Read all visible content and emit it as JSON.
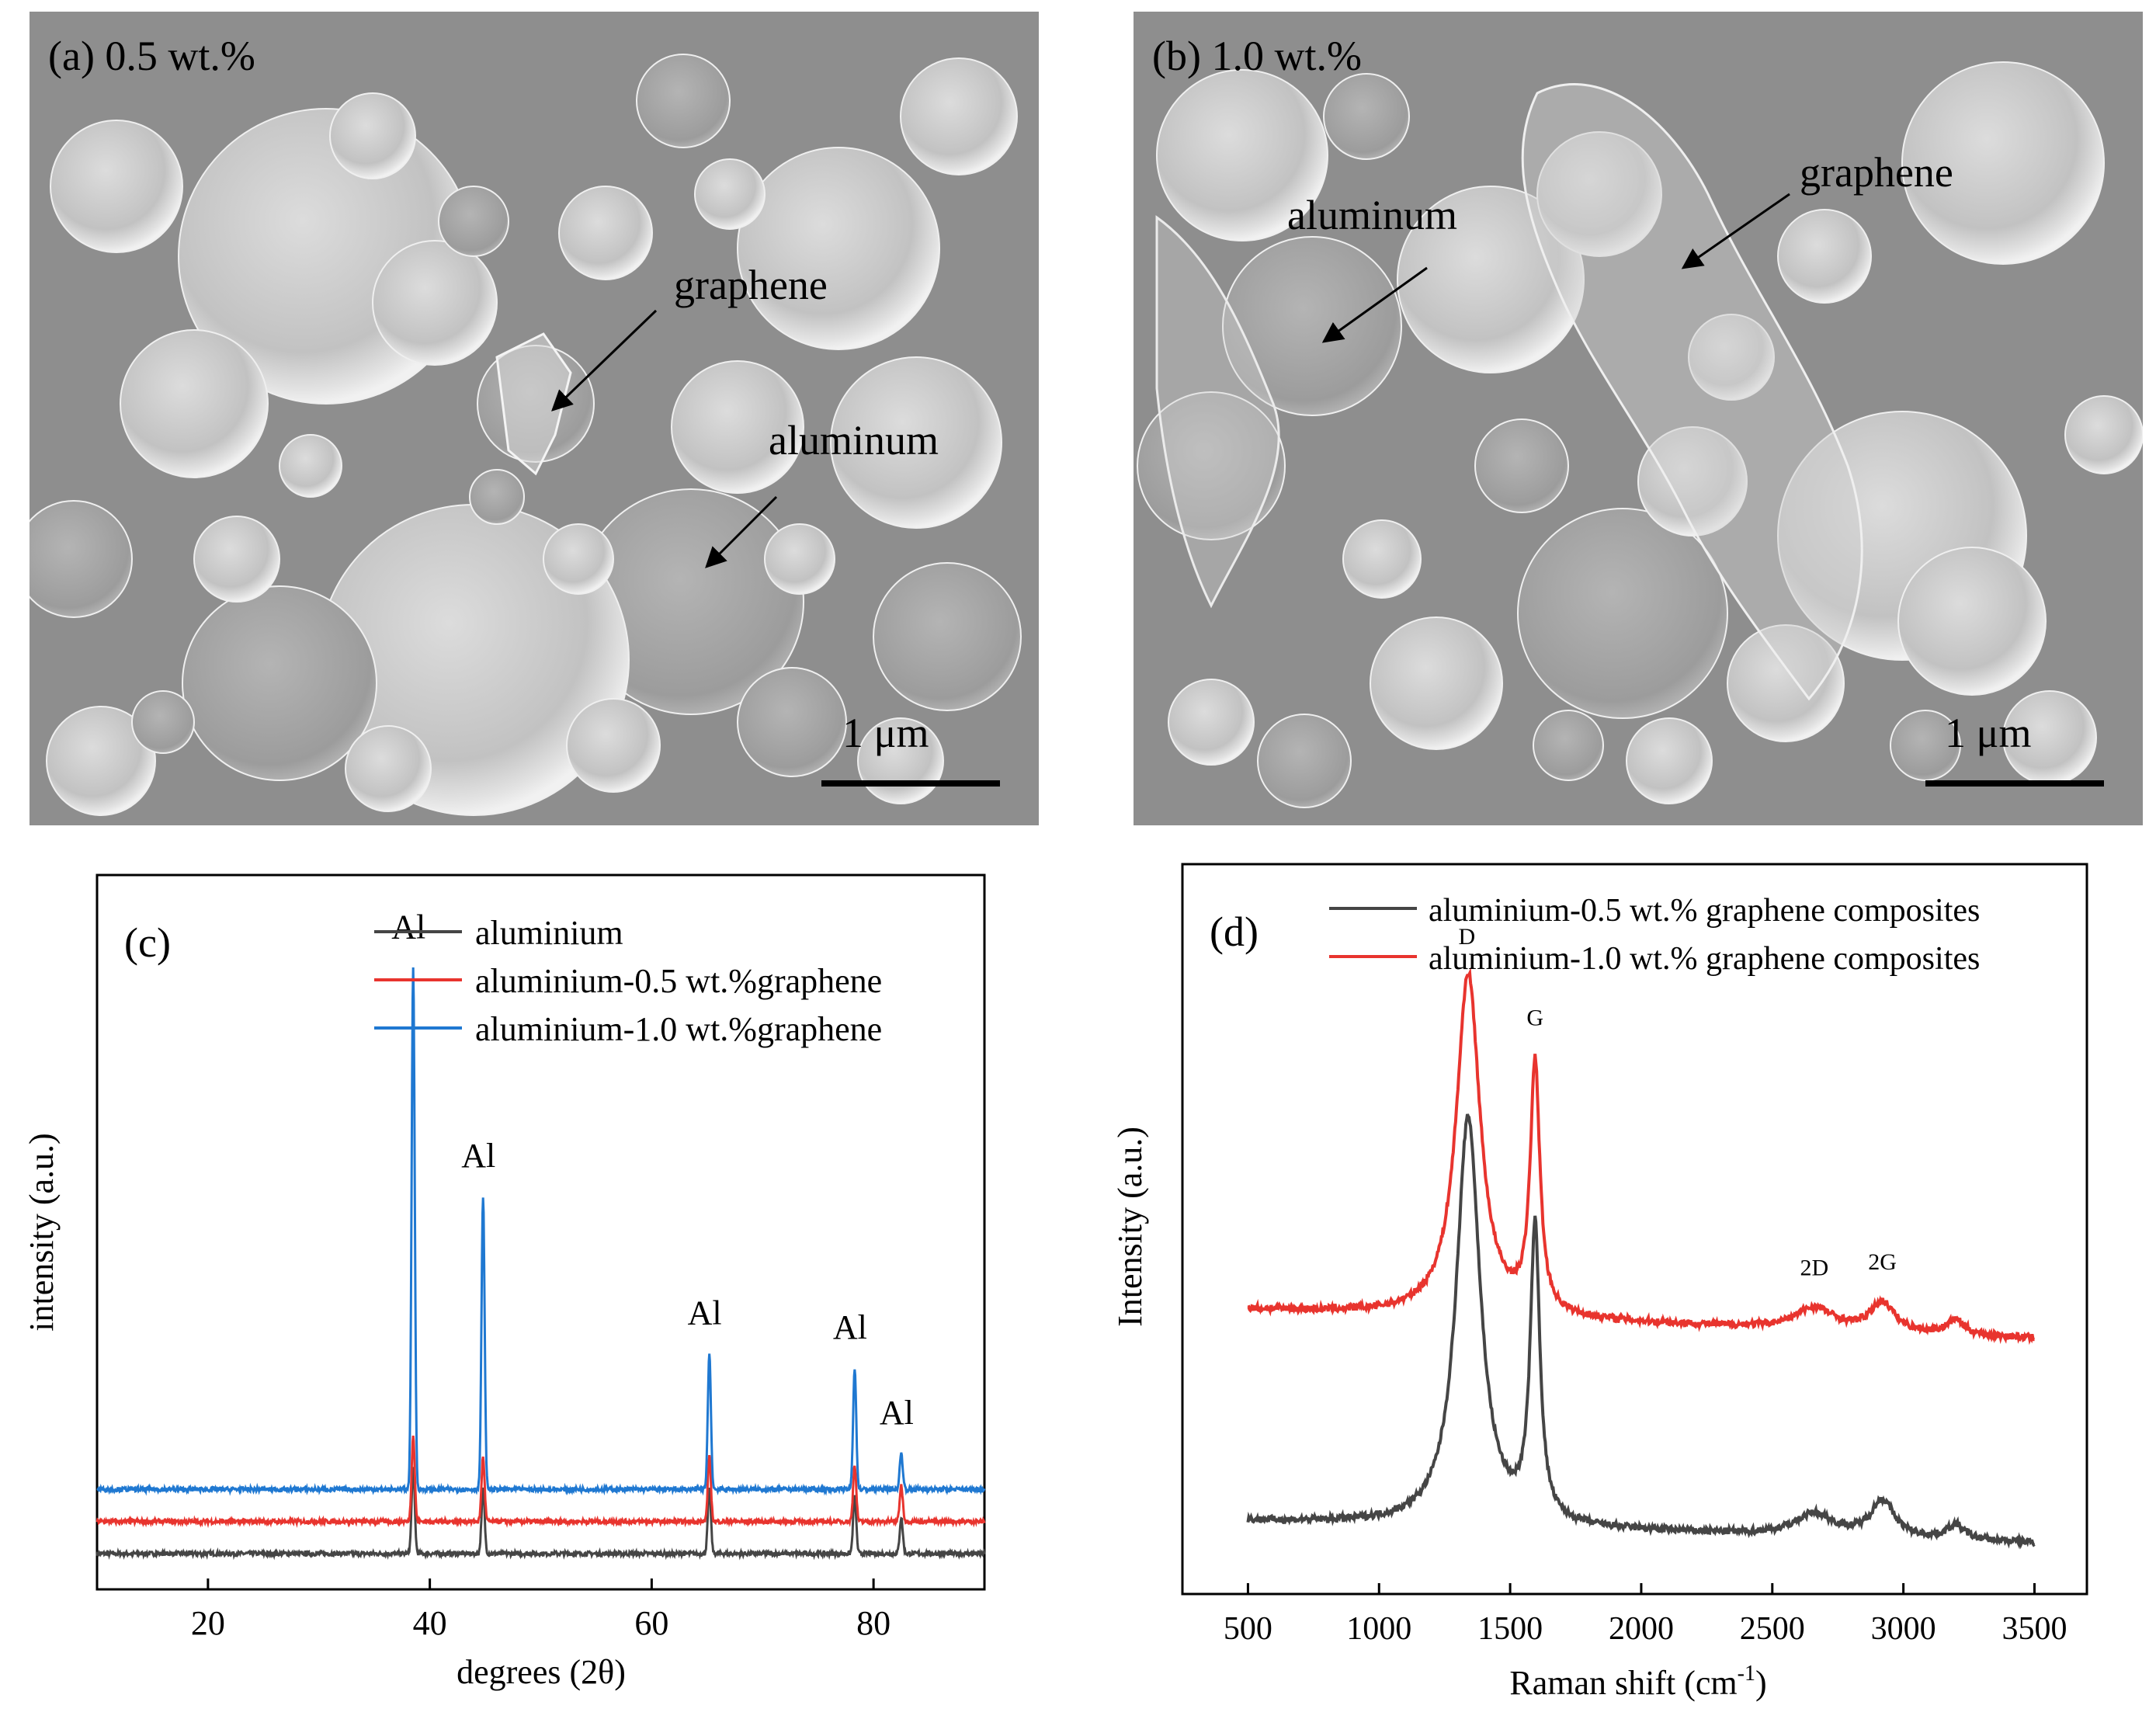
{
  "panel_a": {
    "label": "(a) 0.5 wt.%",
    "annotations": [
      "graphene",
      "aluminum"
    ],
    "scale_bar": "1 μm"
  },
  "panel_b": {
    "label": "(b) 1.0 wt.%",
    "annotations": [
      "graphene",
      "aluminum"
    ],
    "scale_bar": "1 μm"
  },
  "colors": {
    "black_series": "#454545",
    "red_series": "#e8342e",
    "blue_series": "#1f78d1",
    "sem_background": "#8f8f8f"
  },
  "chart_data": [
    {
      "id": "c",
      "type": "line",
      "panel_label": "(c)",
      "xlabel": "degrees (2θ)",
      "ylabel": "intensity (a.u.)",
      "xlim": [
        10,
        90
      ],
      "ylim": [
        0,
        100
      ],
      "x_ticks": [
        20,
        40,
        60,
        80
      ],
      "legend_position": "top-right",
      "series": [
        {
          "name": "aluminium",
          "color": "#454545",
          "baseline": 5,
          "peaks": [
            [
              38.5,
              12
            ],
            [
              44.8,
              9
            ],
            [
              65.2,
              9
            ],
            [
              78.3,
              8
            ],
            [
              82.5,
              5
            ]
          ]
        },
        {
          "name": "aluminium-0.5 wt.%graphene",
          "color": "#e8342e",
          "baseline": 9.5,
          "peaks": [
            [
              38.5,
              12
            ],
            [
              44.8,
              9
            ],
            [
              65.2,
              9
            ],
            [
              78.3,
              8
            ],
            [
              82.5,
              5
            ]
          ]
        },
        {
          "name": "aluminium-1.0 wt.%graphene",
          "color": "#1f78d1",
          "baseline": 14,
          "peaks": [
            [
              38.5,
              73
            ],
            [
              44.8,
              41
            ],
            [
              65.2,
              19
            ],
            [
              78.3,
              17
            ],
            [
              82.5,
              5
            ]
          ]
        }
      ],
      "peak_labels": [
        {
          "text": "Al",
          "x": 38.5
        },
        {
          "text": "Al",
          "x": 44.8
        },
        {
          "text": "Al",
          "x": 65.2
        },
        {
          "text": "Al",
          "x": 78.3
        },
        {
          "text": "Al",
          "x": 82.5
        }
      ]
    },
    {
      "id": "d",
      "type": "line",
      "panel_label": "(d)",
      "xlabel": "Raman shift (cm",
      "xlabel_sup": "-1",
      "xlabel_tail": ")",
      "ylabel": "Intensity (a.u.)",
      "xlim": [
        250,
        3700
      ],
      "ylim": [
        0,
        100
      ],
      "x_ticks": [
        500,
        1000,
        1500,
        2000,
        2500,
        3000,
        3500
      ],
      "legend_position": "top-right",
      "series": [
        {
          "name": "aluminium-0.5 wt.% graphene composites",
          "color": "#454545",
          "baseline": [
            [
              500,
              10
            ],
            [
              3500,
              7
            ]
          ],
          "peaks": [
            [
              1340,
              56,
              55
            ],
            [
              1595,
              40,
              22
            ],
            [
              2660,
              3,
              90
            ],
            [
              2920,
              5,
              55
            ],
            [
              3200,
              2,
              40
            ]
          ]
        },
        {
          "name": "aluminium-1.0 wt.% graphene composites",
          "color": "#e8342e",
          "baseline": [
            [
              500,
              39
            ],
            [
              3500,
              35
            ]
          ],
          "peaks": [
            [
              1340,
              47,
              55
            ],
            [
              1595,
              34,
              22
            ],
            [
              2660,
              3,
              90
            ],
            [
              2920,
              4,
              55
            ],
            [
              3200,
              2,
              40
            ]
          ]
        }
      ],
      "peak_labels": [
        {
          "text": "D",
          "x": 1335
        },
        {
          "text": "G",
          "x": 1595
        },
        {
          "text": "2D",
          "x": 2660
        },
        {
          "text": "2G",
          "x": 2920
        }
      ]
    }
  ]
}
